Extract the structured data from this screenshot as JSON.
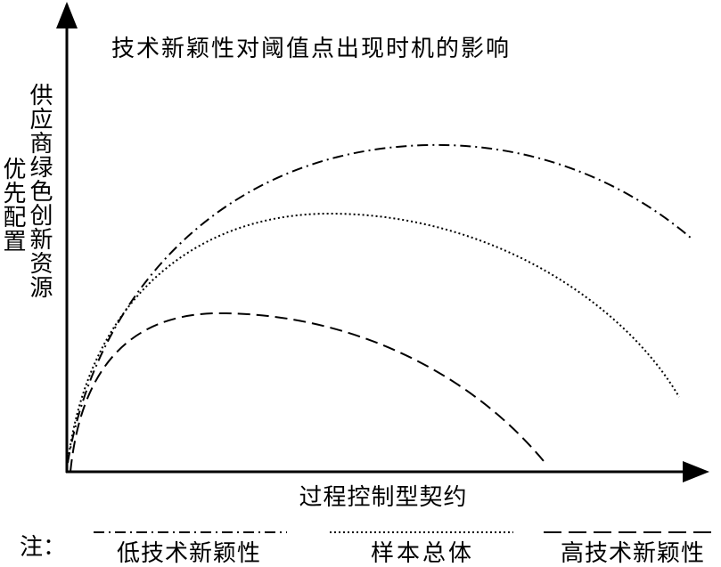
{
  "title": "技术新颖性对阈值点出现时机的影响",
  "y_axis_label": {
    "lines": [
      "供应商绿色创新资源",
      "优先配置"
    ]
  },
  "x_axis_label": "过程控制型契约",
  "legend": {
    "note": "注：",
    "items": [
      "低技术新颖性",
      "样本总体",
      "高技术新颖性"
    ]
  }
}
